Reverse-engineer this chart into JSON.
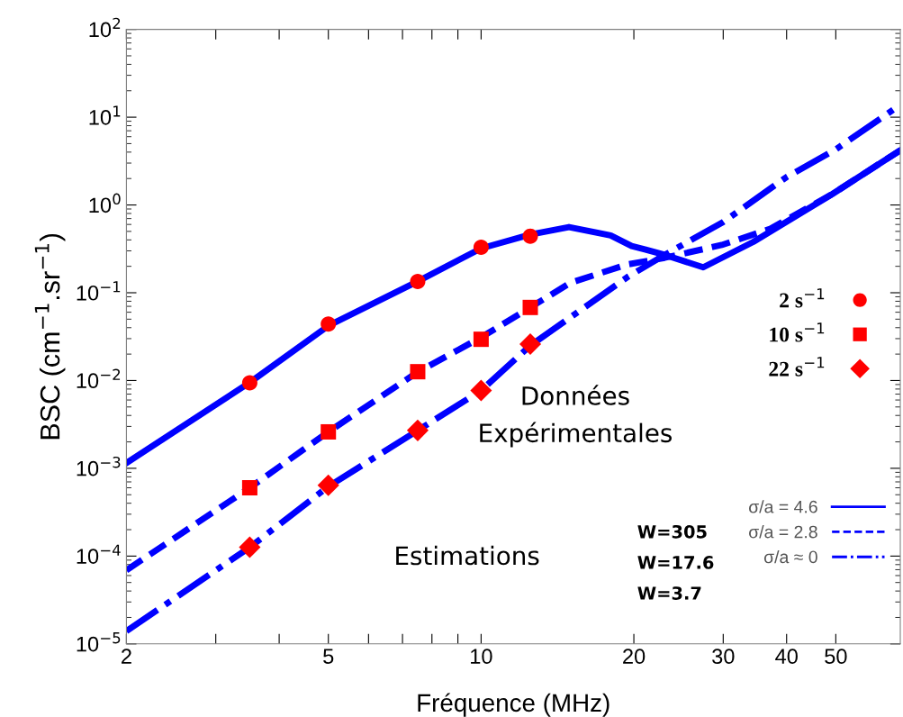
{
  "chart_data": {
    "type": "line",
    "xlabel": "Fréquence (MHz)",
    "ylabel": "BSC (cm$^{−1}$.sr$^{−1}$)",
    "log": "xy",
    "grid": false,
    "legend": "right",
    "xlim": [
      2,
      67
    ],
    "ylim": [
      1e-05,
      100
    ],
    "xticks": [
      2,
      {
        "value": 3,
        "label": null
      },
      {
        "value": 4,
        "label": null
      },
      5,
      {
        "value": 6,
        "label": null
      },
      {
        "value": 7,
        "label": null
      },
      {
        "value": 8,
        "label": null
      },
      {
        "value": 9,
        "label": null
      },
      10,
      20,
      30,
      40,
      50
    ],
    "yticks": [
      {
        "value": 1e-05,
        "label": "10$^{−5}$"
      },
      {
        "value": 0.0001,
        "label": "10$^{−4}$"
      },
      {
        "value": 0.001,
        "label": "10$^{−3}$"
      },
      {
        "value": 0.01,
        "label": "10$^{−2}$"
      },
      {
        "value": 0.1,
        "label": "10$^{−1}$"
      },
      {
        "value": 1,
        "label": "10$^{0}$"
      },
      {
        "value": 10,
        "label": "10$^{1}$"
      },
      {
        "value": 100,
        "label": "10$^{2}$"
      }
    ],
    "annotations": [
      "Données Expérimentales",
      "Estimations",
      "W=305",
      "W=17.6",
      "W=3.7"
    ],
    "series": [
      {
        "name": "σ/a = 4.6",
        "line_style": "solid",
        "marker": "none",
        "color": "#0000ff",
        "x": [
          2,
          3.5,
          5,
          7.5,
          10,
          12.5,
          14.9,
          18,
          19.8,
          21.1,
          23,
          27.4,
          34.4,
          49.2,
          67
        ],
        "values": [
          0.00115,
          0.0095,
          0.042,
          0.135,
          0.32,
          0.46,
          0.56,
          0.45,
          0.34,
          0.31,
          0.27,
          0.195,
          0.38,
          1.33,
          4.2
        ]
      },
      {
        "name": "σ/a = 2.8",
        "line_style": "dashed",
        "marker": "none",
        "color": "#0000ff",
        "x": [
          2,
          3.5,
          5,
          7.5,
          10,
          12.5,
          15,
          19.4,
          23,
          29.8,
          37,
          49.2,
          67
        ],
        "values": [
          6.9e-05,
          0.0006,
          0.0026,
          0.0125,
          0.031,
          0.068,
          0.13,
          0.21,
          0.25,
          0.35,
          0.53,
          1.33,
          4.2
        ]
      },
      {
        "name": "σ/a ≈ 0",
        "line_style": "dashdot",
        "marker": "none",
        "color": "#0000ff",
        "x": [
          2,
          3.5,
          5,
          7.5,
          10,
          12.5,
          19.4,
          23,
          30,
          40,
          50,
          67
        ],
        "values": [
          1.4e-05,
          0.000126,
          0.00062,
          0.0027,
          0.0077,
          0.025,
          0.15,
          0.27,
          0.64,
          2.08,
          4.3,
          13.8
        ]
      },
      {
        "name": "2 s$^{−1}$",
        "type": "scatter",
        "marker": "circle",
        "color": "#ff0000",
        "x": [
          3.5,
          5,
          7.5,
          10,
          12.5
        ],
        "values": [
          0.0094,
          0.044,
          0.134,
          0.33,
          0.44
        ]
      },
      {
        "name": "10 s$^{−1}$",
        "type": "scatter",
        "marker": "square",
        "color": "#ff0000",
        "x": [
          3.5,
          5,
          7.5,
          10,
          12.5
        ],
        "values": [
          0.0006,
          0.0026,
          0.0126,
          0.0295,
          0.068
        ]
      },
      {
        "name": "22 s$^{−1}$",
        "type": "scatter",
        "marker": "diamond",
        "color": "#ff0000",
        "x": [
          3.5,
          5,
          7.5,
          10,
          12.5
        ],
        "values": [
          0.000126,
          0.00064,
          0.0027,
          0.0077,
          0.026
        ]
      }
    ]
  }
}
